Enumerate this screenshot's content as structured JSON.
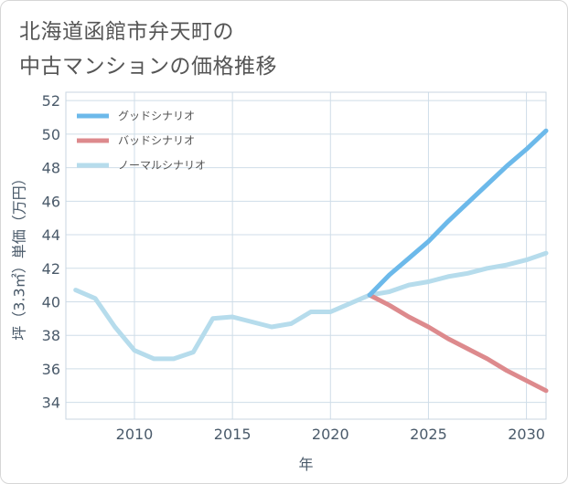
{
  "title_line1": "北海道函館市弁天町の",
  "title_line2": "中古マンションの価格推移",
  "chart_data": {
    "type": "line",
    "xlabel": "年",
    "ylabel": "坪（3.3㎡）単価（万円）",
    "xlim": [
      2006.5,
      2031
    ],
    "ylim": [
      33,
      52.5
    ],
    "xticks": [
      2010,
      2015,
      2020,
      2025,
      2030
    ],
    "yticks": [
      34,
      36,
      38,
      40,
      42,
      44,
      46,
      48,
      50,
      52
    ],
    "grid": true,
    "legend_position": "top-left",
    "series": [
      {
        "name": "グッドシナリオ",
        "color": "#6cb9ea",
        "x": [
          2022,
          2023,
          2024,
          2025,
          2026,
          2027,
          2028,
          2029,
          2030,
          2031
        ],
        "y": [
          40.4,
          41.6,
          42.6,
          43.6,
          44.8,
          45.9,
          47.0,
          48.1,
          49.1,
          50.2
        ]
      },
      {
        "name": "バッドシナリオ",
        "color": "#dd8a8d",
        "x": [
          2022,
          2023,
          2024,
          2025,
          2026,
          2027,
          2028,
          2029,
          2030,
          2031
        ],
        "y": [
          40.4,
          39.8,
          39.1,
          38.5,
          37.8,
          37.2,
          36.6,
          35.9,
          35.3,
          34.7
        ]
      },
      {
        "name": "ノーマルシナリオ",
        "color": "#b6dcec",
        "x": [
          2007,
          2008,
          2009,
          2010,
          2011,
          2012,
          2013,
          2014,
          2015,
          2016,
          2017,
          2018,
          2019,
          2020,
          2021,
          2022,
          2023,
          2024,
          2025,
          2026,
          2027,
          2028,
          2029,
          2030,
          2031
        ],
        "y": [
          40.7,
          40.2,
          38.5,
          37.1,
          36.6,
          36.6,
          37.0,
          39.0,
          39.1,
          38.8,
          38.5,
          38.7,
          39.4,
          39.4,
          39.9,
          40.4,
          40.6,
          41.0,
          41.2,
          41.5,
          41.7,
          42.0,
          42.2,
          42.5,
          42.9
        ]
      }
    ]
  }
}
